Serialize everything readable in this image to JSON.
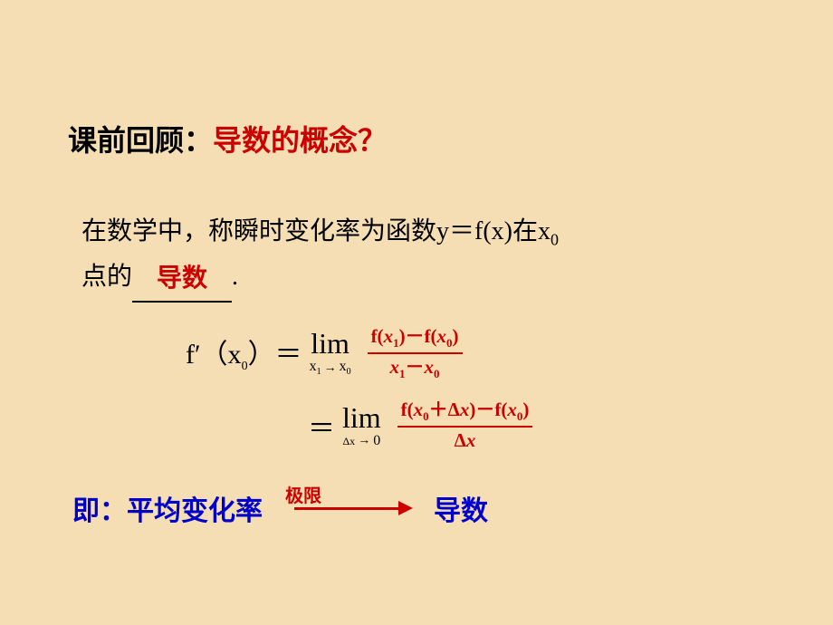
{
  "colors": {
    "background": "#f5deb3",
    "black": "#000000",
    "red": "#cc0000",
    "blue": "#0000cc"
  },
  "title": {
    "prefix": "课前回顾：",
    "concept": "导数的概念？"
  },
  "body": {
    "line_part1": "在数学中，称瞬时变化率为函数y＝f(x)在x",
    "line_sub": "0",
    "line2_part1": "点的",
    "blank_fill": "导数",
    "line2_part2": "."
  },
  "formula": {
    "lhs": "f′（x",
    "lhs_sub": "0",
    "lhs_close": "）＝",
    "lim": "lim",
    "lim1_under_left": "x",
    "lim1_under_left_sub": "1",
    "lim1_under_arrow": "→",
    "lim1_under_right": "x",
    "lim1_under_right_sub": "0",
    "frac1_num": "f(x₁)－f(x₀)",
    "frac1_den": "x₁－x₀",
    "eq2": "＝",
    "lim2_under_left": "Δx",
    "lim2_under_arrow": "→",
    "lim2_under_right": "0",
    "frac2_num": "f(x₀＋Δx)－f(x₀)",
    "frac2_den": "Δx"
  },
  "bottom": {
    "prefix": "即：平均变化率",
    "limit_label": "极限",
    "derivative": "导数"
  }
}
